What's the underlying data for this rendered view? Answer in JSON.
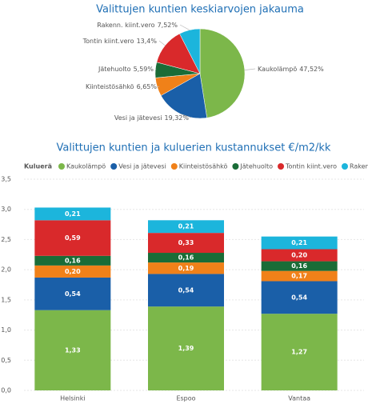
{
  "chart_data": [
    {
      "type": "pie",
      "title": "Valittujen kuntien keskiarvojen jakauma",
      "categories": [
        "Kaukolämpö",
        "Vesi ja jätevesi",
        "Kiinteistösähkö",
        "Jätehuolto",
        "Tontin kiint.vero",
        "Rakenn. kiint.vero"
      ],
      "values": [
        47.52,
        19.32,
        6.65,
        5.59,
        13.4,
        7.52
      ],
      "value_labels": [
        "47,52%",
        "19,32%",
        "6,65%",
        "5,59%",
        "13,4%",
        "7,52%"
      ],
      "colors": [
        "#7cb74a",
        "#1a5fa8",
        "#f08119",
        "#1a6c37",
        "#d9292b",
        "#1cb5dc"
      ]
    },
    {
      "type": "stacked_bar",
      "title": "Valittujen kuntien ja kuluerien kustannukset €/m2/kk",
      "legend_title": "Kuluerä",
      "categories": [
        "Helsinki",
        "Espoo",
        "Vantaa"
      ],
      "series": [
        {
          "name": "Kaukolämpö",
          "color": "#7cb74a",
          "values": [
            1.33,
            1.39,
            1.27
          ],
          "value_labels": [
            "1,33",
            "1,39",
            "1,27"
          ]
        },
        {
          "name": "Vesi ja jätevesi",
          "color": "#1a5fa8",
          "values": [
            0.54,
            0.54,
            0.54
          ],
          "value_labels": [
            "0,54",
            "0,54",
            "0,54"
          ]
        },
        {
          "name": "Kiinteistösähkö",
          "color": "#f08119",
          "values": [
            0.2,
            0.19,
            0.17
          ],
          "value_labels": [
            "0,20",
            "0,19",
            "0,17"
          ]
        },
        {
          "name": "Jätehuolto",
          "color": "#1a6c37",
          "values": [
            0.16,
            0.16,
            0.16
          ],
          "value_labels": [
            "0,16",
            "0,16",
            "0,16"
          ]
        },
        {
          "name": "Tontin kiint.vero",
          "color": "#d9292b",
          "values": [
            0.59,
            0.33,
            0.2
          ],
          "value_labels": [
            "0,59",
            "0,33",
            "0,20"
          ]
        },
        {
          "name": "Rakenn. kiint.vero",
          "color": "#1cb5dc",
          "values": [
            0.21,
            0.21,
            0.21
          ],
          "value_labels": [
            "0,21",
            "0,21",
            "0,21"
          ]
        }
      ],
      "ylim": [
        0,
        3.5
      ],
      "yticks": [
        {
          "value": 0,
          "label": "0,0"
        },
        {
          "value": 0.5,
          "label": "0,5"
        },
        {
          "value": 1,
          "label": "1,0"
        },
        {
          "value": 1.5,
          "label": "1,5"
        },
        {
          "value": 2,
          "label": "2,0"
        },
        {
          "value": 2.5,
          "label": "2,5"
        },
        {
          "value": 3,
          "label": "3,0"
        },
        {
          "value": 3.5,
          "label": "3,5"
        }
      ],
      "grid": true
    }
  ]
}
